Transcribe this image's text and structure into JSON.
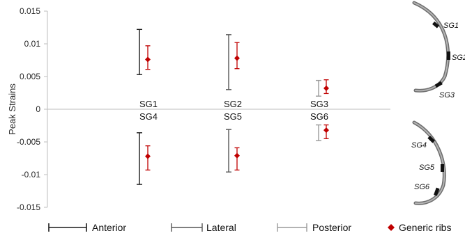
{
  "chart_data": {
    "type": "errorbar",
    "ylabel": "Peak Strains",
    "ylim": [
      -0.015,
      0.015
    ],
    "yticks": [
      {
        "value": 0.015,
        "label": "0.015"
      },
      {
        "value": 0.01,
        "label": "0.01"
      },
      {
        "value": 0.005,
        "label": "0.005"
      },
      {
        "value": 0,
        "label": "0"
      },
      {
        "value": -0.005,
        "label": "-0.005"
      },
      {
        "value": -0.01,
        "label": "-0.01"
      },
      {
        "value": -0.015,
        "label": "-0.015"
      }
    ],
    "groups": [
      {
        "upper_label": "SG1",
        "lower_label": "SG4"
      },
      {
        "upper_label": "SG2",
        "lower_label": "SG5"
      },
      {
        "upper_label": "SG3",
        "lower_label": "SG6"
      }
    ],
    "ranges": [
      {
        "series": "Anterior",
        "gauge": "SG1",
        "min": 0.0053,
        "max": 0.0122
      },
      {
        "series": "Anterior",
        "gauge": "SG4",
        "min": -0.0115,
        "max": -0.0036
      },
      {
        "series": "Lateral",
        "gauge": "SG2",
        "min": 0.003,
        "max": 0.0114
      },
      {
        "series": "Lateral",
        "gauge": "SG5",
        "min": -0.0096,
        "max": -0.0031
      },
      {
        "series": "Posterior",
        "gauge": "SG3",
        "min": 0.002,
        "max": 0.0044
      },
      {
        "series": "Posterior",
        "gauge": "SG6",
        "min": -0.0048,
        "max": -0.0024
      }
    ],
    "generic_ribs": [
      {
        "gauge": "SG1",
        "value": 0.0076,
        "min": 0.0061,
        "max": 0.0097
      },
      {
        "gauge": "SG4",
        "value": -0.0072,
        "min": -0.0093,
        "max": -0.0056
      },
      {
        "gauge": "SG2",
        "value": 0.0078,
        "min": 0.0062,
        "max": 0.0102
      },
      {
        "gauge": "SG5",
        "value": -0.0071,
        "min": -0.0093,
        "max": -0.0059
      },
      {
        "gauge": "SG3",
        "value": 0.0032,
        "min": 0.0024,
        "max": 0.0045
      },
      {
        "gauge": "SG6",
        "value": -0.0032,
        "min": -0.0045,
        "max": -0.0024
      }
    ],
    "legend": [
      {
        "label": "Anterior",
        "color": "#1a1a1a"
      },
      {
        "label": "Lateral",
        "color": "#555555"
      },
      {
        "label": "Posterior",
        "color": "#9a9a9a"
      },
      {
        "label": "Generic ribs",
        "color": "#c00000"
      }
    ],
    "legend_placement": "bottom"
  },
  "rib_diagrams": {
    "upper_labels": [
      "SG1",
      "SG2",
      "SG3"
    ],
    "lower_labels": [
      "SG4",
      "SG5",
      "SG6"
    ]
  }
}
